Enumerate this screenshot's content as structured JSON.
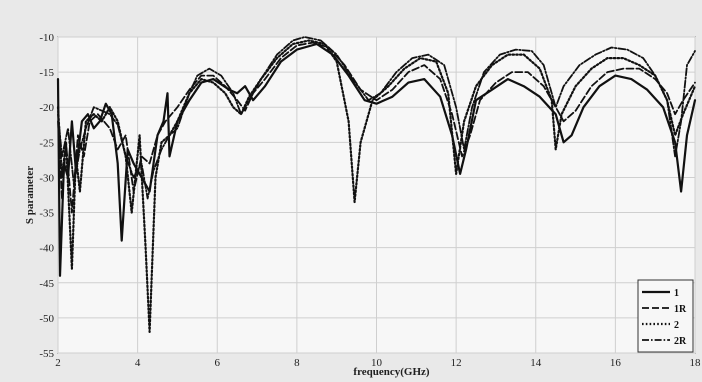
{
  "chart_data": {
    "type": "line",
    "title": "",
    "xlabel": "frequency(GHz)",
    "ylabel": "S parameter",
    "xlim": [
      2,
      18
    ],
    "ylim": [
      -55,
      -10
    ],
    "xticks": [
      2,
      4,
      6,
      8,
      10,
      12,
      14,
      16,
      18
    ],
    "yticks": [
      -10,
      -15,
      -20,
      -25,
      -30,
      -35,
      -40,
      -45,
      -50,
      -55
    ],
    "grid": true,
    "legend_position": "bottom-right",
    "series": [
      {
        "name": "1",
        "style": "solid",
        "color": "#111111",
        "points": [
          [
            2.0,
            -16
          ],
          [
            2.05,
            -44
          ],
          [
            2.15,
            -28
          ],
          [
            2.25,
            -30
          ],
          [
            2.35,
            -22
          ],
          [
            2.45,
            -29
          ],
          [
            2.6,
            -22
          ],
          [
            2.75,
            -21
          ],
          [
            2.9,
            -23
          ],
          [
            3.05,
            -22
          ],
          [
            3.2,
            -19.5
          ],
          [
            3.35,
            -21
          ],
          [
            3.5,
            -28
          ],
          [
            3.6,
            -39
          ],
          [
            3.75,
            -26
          ],
          [
            3.9,
            -28
          ],
          [
            4.1,
            -30
          ],
          [
            4.3,
            -32
          ],
          [
            4.5,
            -24
          ],
          [
            4.65,
            -22
          ],
          [
            4.75,
            -18
          ],
          [
            4.8,
            -27
          ],
          [
            5.0,
            -22
          ],
          [
            5.3,
            -19
          ],
          [
            5.6,
            -16.5
          ],
          [
            5.9,
            -16
          ],
          [
            6.3,
            -17.5
          ],
          [
            6.5,
            -18
          ],
          [
            6.7,
            -17
          ],
          [
            6.9,
            -19
          ],
          [
            7.2,
            -17
          ],
          [
            7.6,
            -13.5
          ],
          [
            8.0,
            -11.8
          ],
          [
            8.5,
            -11
          ],
          [
            8.9,
            -12.5
          ],
          [
            9.3,
            -15.5
          ],
          [
            9.7,
            -19
          ],
          [
            10.0,
            -19.5
          ],
          [
            10.4,
            -18.5
          ],
          [
            10.8,
            -16.5
          ],
          [
            11.2,
            -16
          ],
          [
            11.6,
            -18.5
          ],
          [
            11.9,
            -24
          ],
          [
            12.1,
            -29.5
          ],
          [
            12.25,
            -26
          ],
          [
            12.5,
            -19
          ],
          [
            12.9,
            -17.5
          ],
          [
            13.3,
            -16
          ],
          [
            13.7,
            -17
          ],
          [
            14.1,
            -18.5
          ],
          [
            14.5,
            -21
          ],
          [
            14.7,
            -25
          ],
          [
            14.9,
            -24
          ],
          [
            15.2,
            -20
          ],
          [
            15.6,
            -17
          ],
          [
            16.0,
            -15.5
          ],
          [
            16.4,
            -16
          ],
          [
            16.8,
            -17.5
          ],
          [
            17.2,
            -20
          ],
          [
            17.5,
            -25
          ],
          [
            17.65,
            -32
          ],
          [
            17.8,
            -24
          ],
          [
            18.0,
            -19
          ]
        ]
      },
      {
        "name": "1R",
        "style": "dashed",
        "color": "#111111",
        "points": [
          [
            2.0,
            -22
          ],
          [
            2.1,
            -33
          ],
          [
            2.2,
            -25
          ],
          [
            2.35,
            -35
          ],
          [
            2.5,
            -24
          ],
          [
            2.65,
            -27
          ],
          [
            2.8,
            -22
          ],
          [
            3.0,
            -21
          ],
          [
            3.3,
            -23
          ],
          [
            3.5,
            -26
          ],
          [
            3.7,
            -24
          ],
          [
            3.9,
            -32
          ],
          [
            4.1,
            -27
          ],
          [
            4.3,
            -28
          ],
          [
            4.5,
            -24
          ],
          [
            4.7,
            -22
          ],
          [
            5.0,
            -20
          ],
          [
            5.3,
            -17.5
          ],
          [
            5.6,
            -15.5
          ],
          [
            5.9,
            -15.5
          ],
          [
            6.2,
            -17
          ],
          [
            6.5,
            -19
          ],
          [
            6.7,
            -20.5
          ],
          [
            6.9,
            -18
          ],
          [
            7.2,
            -16
          ],
          [
            7.6,
            -13
          ],
          [
            8.0,
            -11.2
          ],
          [
            8.4,
            -10.8
          ],
          [
            8.8,
            -11.5
          ],
          [
            9.2,
            -14
          ],
          [
            9.6,
            -17.5
          ],
          [
            10.0,
            -19
          ],
          [
            10.4,
            -17.5
          ],
          [
            10.8,
            -15
          ],
          [
            11.2,
            -14
          ],
          [
            11.6,
            -16
          ],
          [
            11.9,
            -21
          ],
          [
            12.15,
            -27
          ],
          [
            12.35,
            -24
          ],
          [
            12.6,
            -19
          ],
          [
            13.0,
            -16.5
          ],
          [
            13.4,
            -15
          ],
          [
            13.8,
            -15
          ],
          [
            14.2,
            -17
          ],
          [
            14.5,
            -20
          ],
          [
            14.7,
            -22
          ],
          [
            15.0,
            -20.5
          ],
          [
            15.4,
            -17
          ],
          [
            15.8,
            -15
          ],
          [
            16.2,
            -14.5
          ],
          [
            16.6,
            -14.5
          ],
          [
            17.0,
            -16
          ],
          [
            17.3,
            -18
          ],
          [
            17.5,
            -21
          ],
          [
            17.7,
            -19
          ],
          [
            18.0,
            -16.5
          ]
        ]
      },
      {
        "name": "2",
        "style": "dotted",
        "color": "#111111",
        "points": [
          [
            2.0,
            -20
          ],
          [
            2.1,
            -30
          ],
          [
            2.2,
            -25
          ],
          [
            2.35,
            -43
          ],
          [
            2.45,
            -27
          ],
          [
            2.55,
            -32
          ],
          [
            2.7,
            -22
          ],
          [
            2.9,
            -21
          ],
          [
            3.1,
            -22
          ],
          [
            3.3,
            -20
          ],
          [
            3.5,
            -22
          ],
          [
            3.7,
            -27
          ],
          [
            3.85,
            -35
          ],
          [
            4.05,
            -24
          ],
          [
            4.2,
            -40
          ],
          [
            4.3,
            -52
          ],
          [
            4.45,
            -30
          ],
          [
            4.6,
            -25
          ],
          [
            4.8,
            -24
          ],
          [
            5.0,
            -22
          ],
          [
            5.3,
            -18
          ],
          [
            5.6,
            -16
          ],
          [
            5.9,
            -16.5
          ],
          [
            6.2,
            -18
          ],
          [
            6.4,
            -20
          ],
          [
            6.6,
            -21
          ],
          [
            6.8,
            -18.5
          ],
          [
            7.1,
            -16
          ],
          [
            7.5,
            -13
          ],
          [
            7.9,
            -11
          ],
          [
            8.3,
            -10.5
          ],
          [
            8.7,
            -11
          ],
          [
            9.0,
            -13.5
          ],
          [
            9.3,
            -22
          ],
          [
            9.45,
            -33.5
          ],
          [
            9.6,
            -25
          ],
          [
            9.9,
            -19
          ],
          [
            10.3,
            -17
          ],
          [
            10.7,
            -14.5
          ],
          [
            11.1,
            -13
          ],
          [
            11.5,
            -13.5
          ],
          [
            11.8,
            -18
          ],
          [
            12.0,
            -29.5
          ],
          [
            12.2,
            -22
          ],
          [
            12.5,
            -17
          ],
          [
            12.9,
            -14
          ],
          [
            13.3,
            -12.5
          ],
          [
            13.7,
            -12.5
          ],
          [
            14.1,
            -14.5
          ],
          [
            14.4,
            -19
          ],
          [
            14.5,
            -26
          ],
          [
            14.65,
            -21
          ],
          [
            15.0,
            -17
          ],
          [
            15.4,
            -14.5
          ],
          [
            15.8,
            -13
          ],
          [
            16.2,
            -13
          ],
          [
            16.6,
            -14
          ],
          [
            17.0,
            -15.5
          ],
          [
            17.3,
            -19
          ],
          [
            17.5,
            -24
          ],
          [
            17.7,
            -21
          ],
          [
            18.0,
            -17
          ]
        ]
      },
      {
        "name": "2R",
        "style": "dashdot",
        "color": "#111111",
        "points": [
          [
            2.0,
            -21
          ],
          [
            2.1,
            -27
          ],
          [
            2.25,
            -23
          ],
          [
            2.4,
            -31
          ],
          [
            2.55,
            -26
          ],
          [
            2.7,
            -23
          ],
          [
            2.9,
            -20
          ],
          [
            3.1,
            -20.5
          ],
          [
            3.3,
            -21
          ],
          [
            3.5,
            -22.5
          ],
          [
            3.7,
            -27
          ],
          [
            3.9,
            -30
          ],
          [
            4.1,
            -28
          ],
          [
            4.25,
            -33
          ],
          [
            4.4,
            -29
          ],
          [
            4.6,
            -26
          ],
          [
            4.8,
            -24
          ],
          [
            5.0,
            -23
          ],
          [
            5.3,
            -18
          ],
          [
            5.5,
            -15.5
          ],
          [
            5.8,
            -14.5
          ],
          [
            6.1,
            -15.5
          ],
          [
            6.4,
            -18
          ],
          [
            6.6,
            -21
          ],
          [
            6.8,
            -19
          ],
          [
            7.1,
            -16
          ],
          [
            7.5,
            -12.5
          ],
          [
            7.9,
            -10.5
          ],
          [
            8.2,
            -10
          ],
          [
            8.6,
            -10.5
          ],
          [
            9.0,
            -12.5
          ],
          [
            9.4,
            -16
          ],
          [
            9.8,
            -19
          ],
          [
            10.1,
            -18
          ],
          [
            10.5,
            -15
          ],
          [
            10.9,
            -13
          ],
          [
            11.3,
            -12.5
          ],
          [
            11.7,
            -14
          ],
          [
            12.0,
            -20
          ],
          [
            12.2,
            -26
          ],
          [
            12.4,
            -20
          ],
          [
            12.7,
            -15
          ],
          [
            13.1,
            -12.5
          ],
          [
            13.5,
            -11.8
          ],
          [
            13.9,
            -12
          ],
          [
            14.2,
            -14
          ],
          [
            14.5,
            -20
          ],
          [
            14.7,
            -17
          ],
          [
            15.1,
            -14
          ],
          [
            15.5,
            -12.5
          ],
          [
            15.9,
            -11.5
          ],
          [
            16.3,
            -11.8
          ],
          [
            16.7,
            -13
          ],
          [
            17.0,
            -15.5
          ],
          [
            17.3,
            -19
          ],
          [
            17.5,
            -27
          ],
          [
            17.65,
            -22
          ],
          [
            17.8,
            -14
          ],
          [
            18.0,
            -12
          ]
        ]
      }
    ]
  }
}
